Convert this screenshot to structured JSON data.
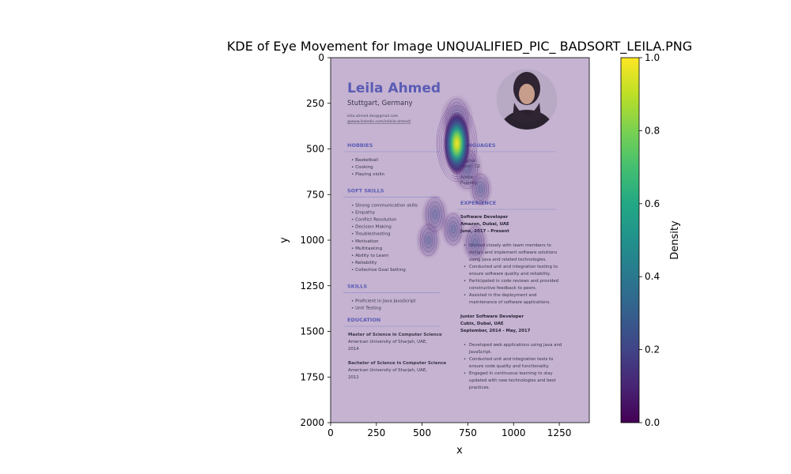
{
  "chart_data": {
    "type": "heatmap",
    "title": "KDE of Eye Movement for Image UNQUALIFIED_PIC_ BADSORT_LEILA.PNG",
    "xlabel": "x",
    "ylabel": "y",
    "xlim": [
      0,
      1414
    ],
    "ylim": [
      2000,
      0
    ],
    "x_ticks": [
      0,
      250,
      500,
      750,
      1000,
      1250
    ],
    "y_ticks": [
      0,
      250,
      500,
      750,
      1000,
      1250,
      1500,
      1750,
      2000
    ],
    "y_inverted": true,
    "colorbar": {
      "label": "Density",
      "range": [
        0,
        1
      ],
      "ticks": [
        0.0,
        0.2,
        0.4,
        0.6,
        0.8,
        1.0
      ],
      "tick_labels": [
        "0.0",
        "0.2",
        "0.4",
        "0.6",
        "0.8",
        "1.0"
      ],
      "colormap": "viridis"
    },
    "density_peaks": [
      {
        "x": 690,
        "y": 470,
        "density": 1.0
      },
      {
        "x": 690,
        "y": 340,
        "density": 0.35
      },
      {
        "x": 745,
        "y": 610,
        "density": 0.3
      },
      {
        "x": 570,
        "y": 860,
        "density": 0.2
      },
      {
        "x": 535,
        "y": 1000,
        "density": 0.15
      },
      {
        "x": 670,
        "y": 940,
        "density": 0.15
      },
      {
        "x": 790,
        "y": 1015,
        "density": 0.18
      },
      {
        "x": 820,
        "y": 720,
        "density": 0.12
      }
    ],
    "grid": false
  },
  "background_image": {
    "name": "Leila Ahmed",
    "location": "Stuttgart, Germany",
    "email": "leila.ahmed.dev@gmail.com",
    "linkedin": "@www.linkedin.com/in/leila-ahmed/",
    "left_sections": [
      {
        "heading": "HOBBIES",
        "items": [
          "Basketball",
          "Cooking",
          "Playing violin"
        ]
      },
      {
        "heading": "SOFT SKILLS",
        "items": [
          "Strong communication skills",
          "Empathy",
          "Conflict Resolution",
          "Decision Making",
          "Troubleshooting",
          "Motivation",
          "Multitasking",
          "Ability to Learn",
          "Reliability",
          "Collective Goal Setting"
        ]
      },
      {
        "heading": "SKILLS",
        "items": [
          "Proficient in Java JavaScript",
          "Unit Testing"
        ]
      }
    ],
    "education": {
      "heading": "EDUCATION",
      "entries": [
        {
          "degree": "Master of Science in Computer Science",
          "lines": [
            "American University of Sharjah, UAE,",
            "2014"
          ]
        },
        {
          "degree": "Bachelor of Science in Computer Science",
          "lines": [
            "American University of Sharjah, UAE,",
            "2012"
          ]
        }
      ]
    },
    "languages": {
      "heading": "LANGUAGES",
      "entries": [
        {
          "lang": "English",
          "level": "Level: C2"
        },
        {
          "lang": "Arabic",
          "level": "Fluently"
        }
      ]
    },
    "experience": {
      "heading": "EXPERIENCE",
      "jobs": [
        {
          "title": "Software Developer",
          "company": "Amazon, Dubai, UAE",
          "dates": "June, 2017 - Present",
          "bullets": [
            [
              "Worked closely with team members to",
              "design and implement software solutions",
              "using Java and related technologies."
            ],
            [
              "Conducted unit and integration testing to",
              "ensure software quality and reliability."
            ],
            [
              "Participated in code reviews and provided",
              "constructive feedback to peers."
            ],
            [
              "Assisted in the deployment and",
              "maintenance of software applications."
            ]
          ]
        },
        {
          "title": "Junior Software Developer",
          "company": "Cubix, Dubai, UAE",
          "dates": "September, 2014 - May, 2017",
          "bullets": [
            [
              "Developed web applications using Java and",
              "JavaScript."
            ],
            [
              "Conducted unit and integration tests to",
              "ensure code quality and functionality."
            ],
            [
              "Engaged in continuous learning to stay",
              "updated with new technologies and best",
              "practices."
            ]
          ]
        }
      ]
    }
  }
}
